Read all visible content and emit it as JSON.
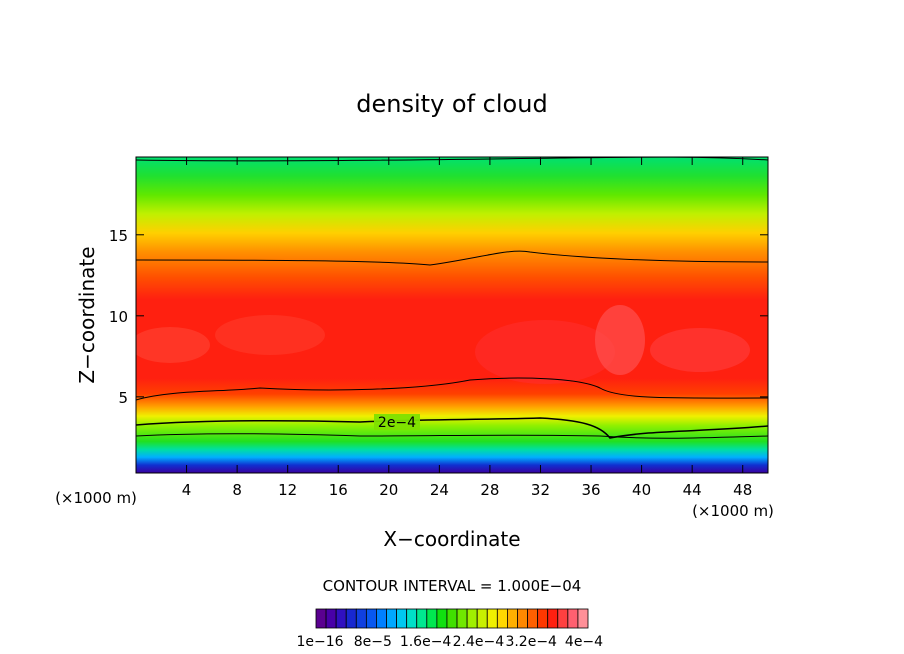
{
  "chart_data": {
    "type": "heatmap",
    "title": "density of cloud",
    "xlabel": "X−coordinate",
    "ylabel": "Z−coordinate",
    "x_unit_left": "(×1000 m)",
    "x_unit_right": "(×1000 m)",
    "xlim": [
      0,
      50
    ],
    "ylim": [
      0.3,
      19.8
    ],
    "x_ticks": [
      4,
      8,
      12,
      16,
      20,
      24,
      28,
      32,
      36,
      40,
      44,
      48
    ],
    "y_ticks": [
      5,
      10,
      15
    ],
    "grid": false,
    "contour_interval_label": "CONTOUR INTERVAL = 1.000E−04",
    "contour_interval": 0.0001,
    "contour_label": "2e−4",
    "colorbar": {
      "min": 1e-16,
      "max": 0.0004,
      "tick_labels": [
        "1e−16",
        "8e−5",
        "1.6e−4",
        "2.4e−4",
        "3.2e−4",
        "4e−4"
      ],
      "colors": [
        "#5a0090",
        "#4800a8",
        "#3010c0",
        "#1828d0",
        "#1040e0",
        "#0858f0",
        "#0080ff",
        "#00a8ff",
        "#00c8f0",
        "#00e0c8",
        "#00e890",
        "#00e850",
        "#10e010",
        "#40e000",
        "#70e800",
        "#a0f000",
        "#c8f000",
        "#f0f000",
        "#ffd800",
        "#ffb000",
        "#ff8800",
        "#ff6000",
        "#ff3800",
        "#ff2010",
        "#ff4040",
        "#ff6070",
        "#ff9098"
      ]
    }
  }
}
